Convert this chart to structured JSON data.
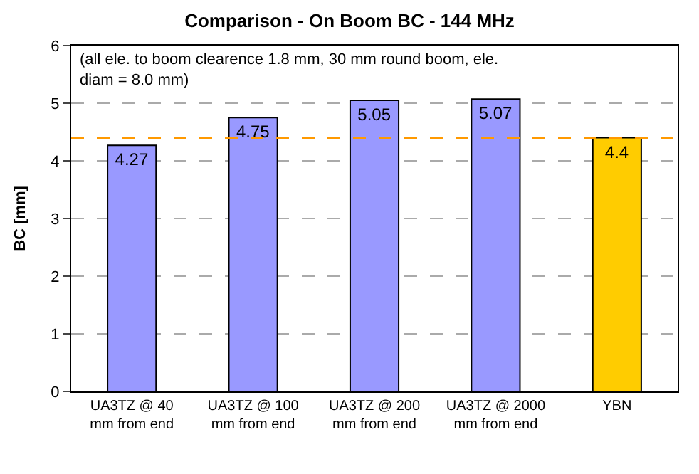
{
  "chart_data": {
    "type": "bar",
    "title": "Comparison - On Boom BC - 144 MHz",
    "ylabel": "BC [mm]",
    "categories": [
      "UA3TZ @ 40 mm from end",
      "UA3TZ @ 100 mm from end",
      "UA3TZ @ 200 mm from end",
      "UA3TZ @ 2000 mm from end",
      "YBN"
    ],
    "values": [
      4.27,
      4.75,
      5.05,
      5.07,
      4.4
    ],
    "colors": [
      "#9999ff",
      "#9999ff",
      "#9999ff",
      "#9999ff",
      "#ffcc00"
    ],
    "ylim": [
      0,
      6
    ],
    "yticks": [
      0,
      1,
      2,
      3,
      4,
      5,
      6
    ],
    "grid": "y",
    "data_labels": true,
    "ref_lines": [
      {
        "axis": "y",
        "value": 4.4,
        "color": "#ff9900",
        "line_style": "dashed"
      }
    ],
    "annotations": [
      "(all ele. to boom clearence 1.8 mm, 30 mm round boom, ele. diam = 8.0 mm)"
    ]
  }
}
